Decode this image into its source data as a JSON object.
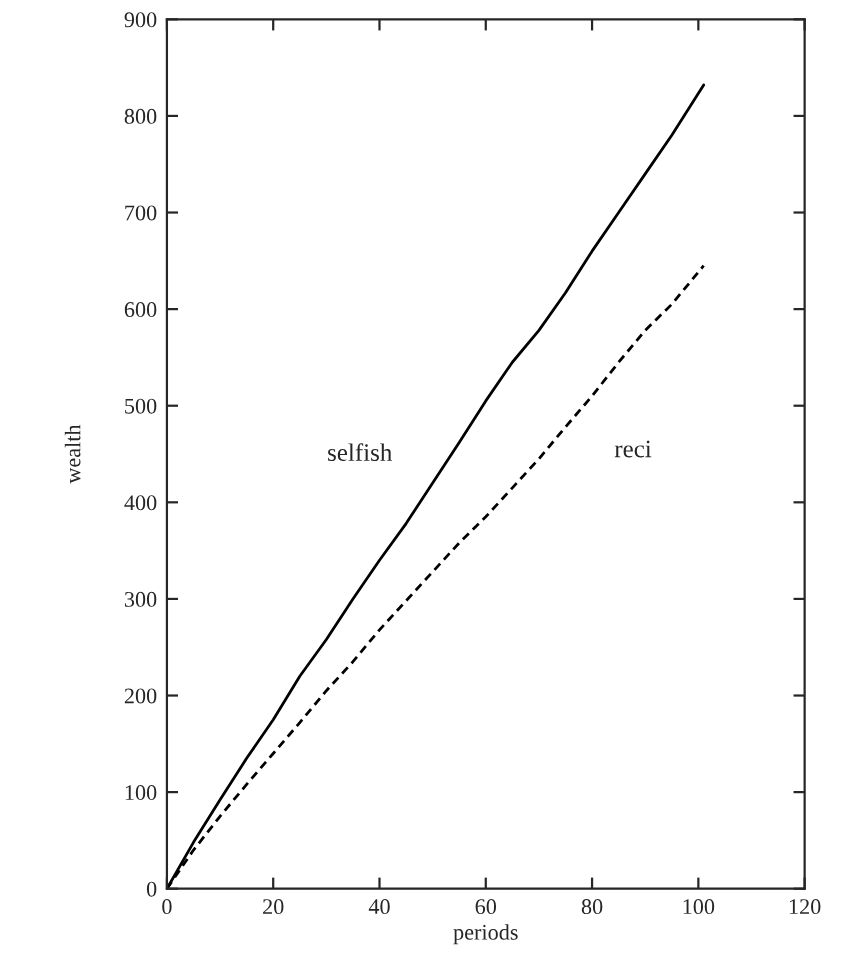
{
  "chart_data": {
    "type": "line",
    "xlabel": "periods",
    "ylabel": "wealth",
    "xlim": [
      0,
      120
    ],
    "ylim": [
      0,
      900
    ],
    "xticks": [
      0,
      20,
      40,
      60,
      80,
      100,
      120
    ],
    "yticks": [
      0,
      100,
      200,
      300,
      400,
      500,
      600,
      700,
      800,
      900
    ],
    "grid": false,
    "legend": false,
    "series": [
      {
        "name": "selfish",
        "color": "#000000",
        "line_style": "solid",
        "x": [
          0,
          5,
          10,
          15,
          20,
          25,
          30,
          35,
          40,
          45,
          50,
          55,
          60,
          65,
          70,
          75,
          80,
          85,
          90,
          95,
          101
        ],
        "values": [
          0,
          48,
          92,
          135,
          175,
          220,
          258,
          300,
          340,
          378,
          420,
          462,
          505,
          545,
          578,
          617,
          660,
          700,
          740,
          780,
          832
        ]
      },
      {
        "name": "reci",
        "color": "#000000",
        "line_style": "dashed",
        "x": [
          0,
          5,
          10,
          15,
          20,
          25,
          30,
          35,
          40,
          45,
          50,
          55,
          60,
          65,
          70,
          75,
          80,
          85,
          90,
          95,
          101
        ],
        "values": [
          0,
          40,
          75,
          108,
          140,
          172,
          205,
          235,
          268,
          298,
          328,
          358,
          385,
          415,
          445,
          478,
          510,
          545,
          578,
          605,
          645
        ]
      }
    ]
  }
}
